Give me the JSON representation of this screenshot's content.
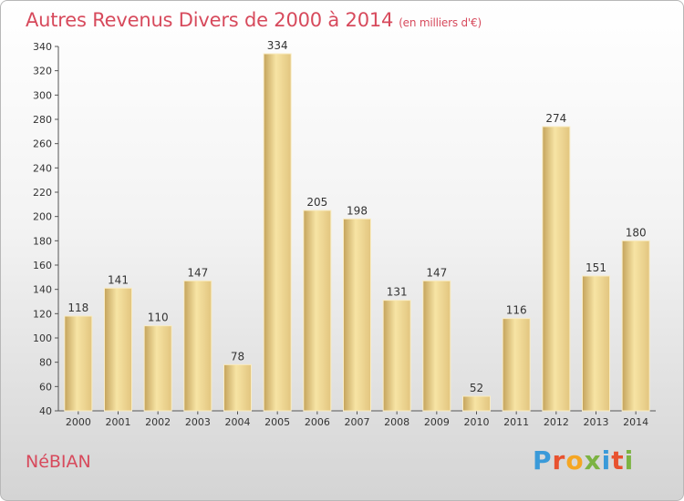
{
  "header": {
    "title": "Autres Revenus Divers de 2000 à 2014",
    "subtitle": "(en milliers d'€)"
  },
  "footer": {
    "commune": "NéBIAN",
    "logo_text": "Proxiti",
    "logo_colors": [
      "#3a9ad9",
      "#e8522f",
      "#f5a623",
      "#7cb342",
      "#3a9ad9",
      "#e8522f",
      "#7cb342"
    ]
  },
  "chart_data": {
    "type": "bar",
    "categories": [
      "2000",
      "2001",
      "2002",
      "2003",
      "2004",
      "2005",
      "2006",
      "2007",
      "2008",
      "2009",
      "2010",
      "2011",
      "2012",
      "2013",
      "2014"
    ],
    "values": [
      118,
      141,
      110,
      147,
      78,
      334,
      205,
      198,
      131,
      147,
      52,
      116,
      274,
      151,
      180
    ],
    "title": "Autres Revenus Divers de 2000 à 2014",
    "subtitle": "(en milliers d'€)",
    "xlabel": "",
    "ylabel": "",
    "ylim": [
      40,
      340
    ],
    "yticks": [
      40,
      60,
      80,
      100,
      120,
      140,
      160,
      180,
      200,
      220,
      240,
      260,
      280,
      300,
      320,
      340
    ],
    "grid": false,
    "legend": "none",
    "bar_color": "#e2c57f",
    "bar_highlight": "#f7e4a4",
    "bar_shadow": "#c4a35c"
  }
}
